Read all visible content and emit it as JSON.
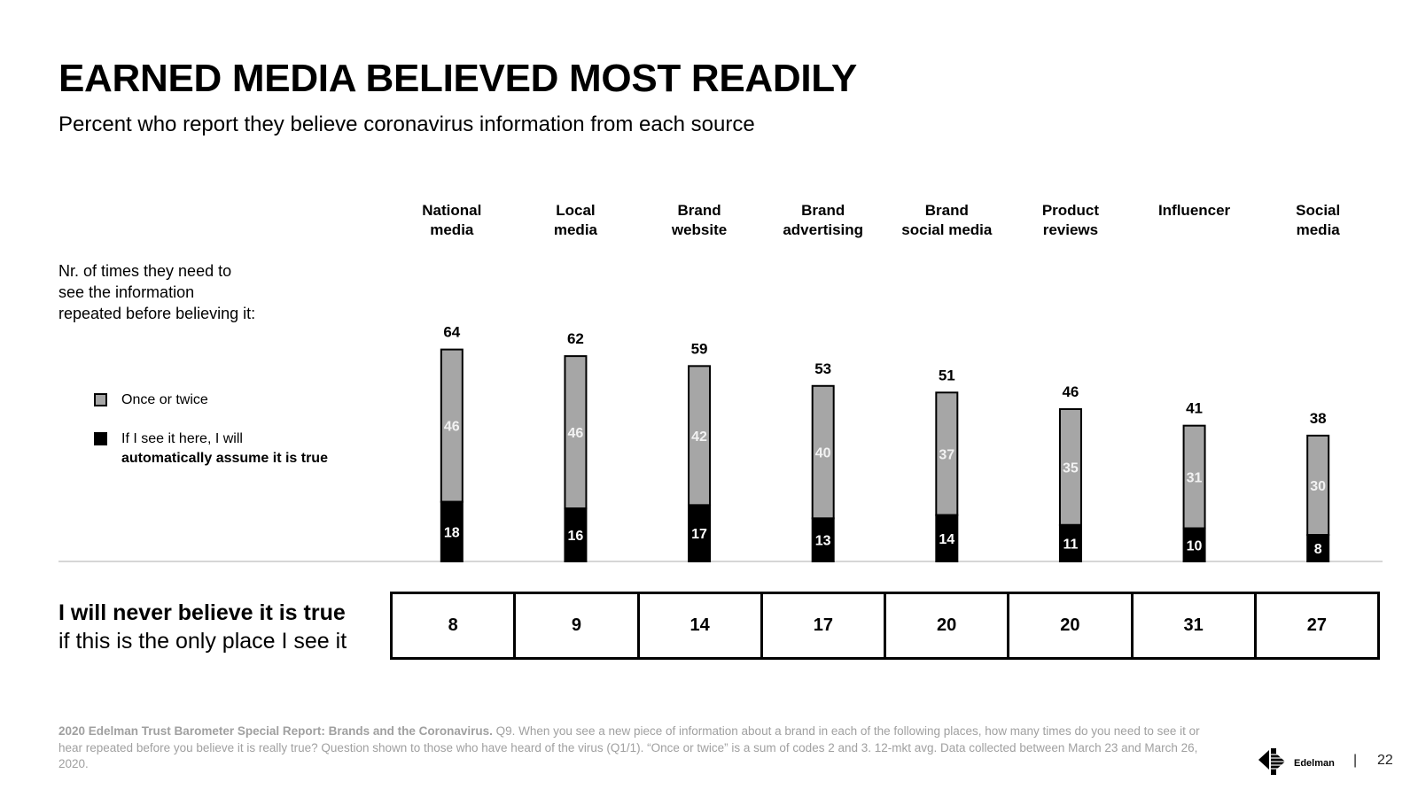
{
  "title": "EARNED MEDIA BELIEVED MOST READILY",
  "subtitle": "Percent who report they believe coronavirus information from each source",
  "note": {
    "line1": "Nr. of times they need to",
    "line2": "see the information",
    "line3": "repeated before believing it:"
  },
  "legend": {
    "once_label": "Once or twice",
    "auto_label_line1": "If I see it here, I will",
    "auto_label_line2": "automatically assume it is true"
  },
  "never": {
    "line1": "I will never believe it is true",
    "line2": "if this is the only place I see it",
    "values": [
      "8",
      "9",
      "14",
      "17",
      "20",
      "20",
      "31",
      "27"
    ]
  },
  "chart_data": {
    "type": "bar",
    "stacked": true,
    "categories": [
      [
        "National",
        "media"
      ],
      [
        "Local",
        "media"
      ],
      [
        "Brand",
        "website"
      ],
      [
        "Brand",
        "advertising"
      ],
      [
        "Brand",
        "social media"
      ],
      [
        "Product",
        "reviews"
      ],
      [
        "Influencer"
      ],
      [
        "Social",
        "media"
      ]
    ],
    "series": [
      {
        "name": "If I see it here, I will automatically assume it is true",
        "color": "#000000",
        "values": [
          18,
          16,
          17,
          13,
          14,
          11,
          10,
          8
        ]
      },
      {
        "name": "Once or twice",
        "color": "#a6a6a6",
        "values": [
          46,
          46,
          42,
          40,
          37,
          35,
          31,
          30
        ]
      }
    ],
    "totals": [
      64,
      62,
      59,
      53,
      51,
      46,
      41,
      38
    ],
    "ylim": [
      0,
      64
    ]
  },
  "footnote": {
    "bold": "2020 Edelman Trust Barometer Special Report: Brands and the Coronavirus.",
    "text": " Q9. When you see a new piece of information about a brand in each of the following places, how many times do you need to see it or hear repeated before you believe it is really true? Question shown to those who have heard of the virus (Q1/1). “Once or twice” is a sum of codes 2 and 3. 12-mkt avg. Data collected between March 23 and March 26, 2020."
  },
  "brand": {
    "name": "Edelman",
    "separator": "|",
    "page": "22"
  },
  "colors": {
    "gray_fill": "#a6a6a6",
    "black_fill": "#000000",
    "baseline": "#c8c8c8",
    "footnote": "#a0a0a0"
  }
}
